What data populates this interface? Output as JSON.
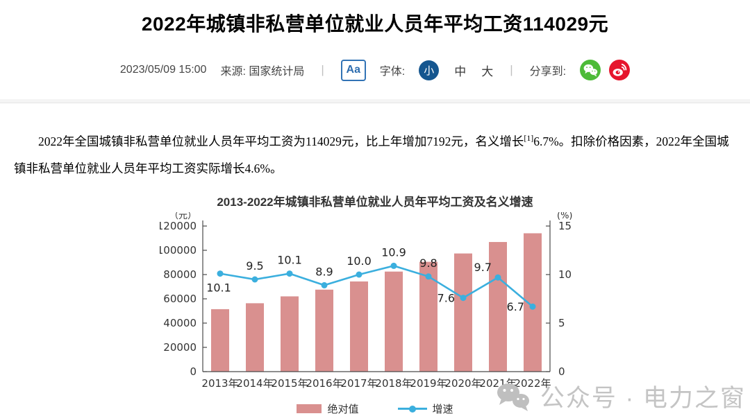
{
  "page": {
    "title": "2022年城镇非私营单位就业人员年平均工资114029元",
    "meta": {
      "datetime": "2023/05/09 15:00",
      "source": "来源: 国家统计局",
      "separator": "|",
      "font_widget": {
        "icon_label": "Aa",
        "label": "字体:",
        "options": [
          "小",
          "中",
          "大"
        ],
        "selected": "小"
      },
      "share": {
        "label": "分享到:",
        "icons": [
          "wechat-icon",
          "weibo-icon"
        ]
      }
    },
    "paragraph": {
      "part1": "2022年全国城镇非私营单位就业人员年平均工资为114029元，比上年增加7192元，名义增长",
      "sup": "[1]",
      "part2": "6.7%。扣除价格因素，2022年全国城镇非私营单位就业人员年平均工资实际增长4.6%。"
    },
    "watermark": "公众号 · 电力之窗"
  },
  "colors": {
    "bar": "#d9908f",
    "line": "#3bafde",
    "selected_font_circle": "#15568f",
    "aa_border": "#3173b5",
    "wechat_green": "#4dbb38",
    "weibo_red": "#e6162d",
    "watermark_gray": "#c4c4c4"
  },
  "chart_data": {
    "type": "bar+line",
    "title": "2013-2022年城镇非私营单位就业人员年平均工资及名义增速",
    "categories": [
      "2013年",
      "2014年",
      "2015年",
      "2016年",
      "2017年",
      "2018年",
      "2019年",
      "2020年",
      "2021年",
      "2022年"
    ],
    "series": [
      {
        "name": "绝对值",
        "type": "bar",
        "axis": "left",
        "unit": "元",
        "color": "#d9908f",
        "values": [
          51483,
          56360,
          62029,
          67569,
          74318,
          82461,
          90501,
          97379,
          106837,
          114029
        ]
      },
      {
        "name": "增速",
        "type": "line",
        "axis": "right",
        "unit": "%",
        "color": "#3bafde",
        "values": [
          10.1,
          9.5,
          10.1,
          8.9,
          10.0,
          10.9,
          9.8,
          7.6,
          9.7,
          6.7
        ],
        "labels": [
          "10.1",
          "9.5",
          "10.1",
          "8.9",
          "10.0",
          "10.9",
          "9.8",
          "7.6",
          "9.7",
          "6.7"
        ],
        "label_positions": [
          "below",
          "above",
          "above",
          "above",
          "above",
          "above",
          "above",
          "left",
          "left-above",
          "left"
        ]
      }
    ],
    "left_axis": {
      "unit_label": "（元）",
      "min": 0,
      "max": 120000,
      "tick_step": 20000
    },
    "right_axis": {
      "unit_label": "(%)",
      "min": 0,
      "max": 15,
      "tick_step": 5
    },
    "legend": [
      "绝对值",
      "增速"
    ],
    "legend_position": "bottom",
    "grid": false
  }
}
